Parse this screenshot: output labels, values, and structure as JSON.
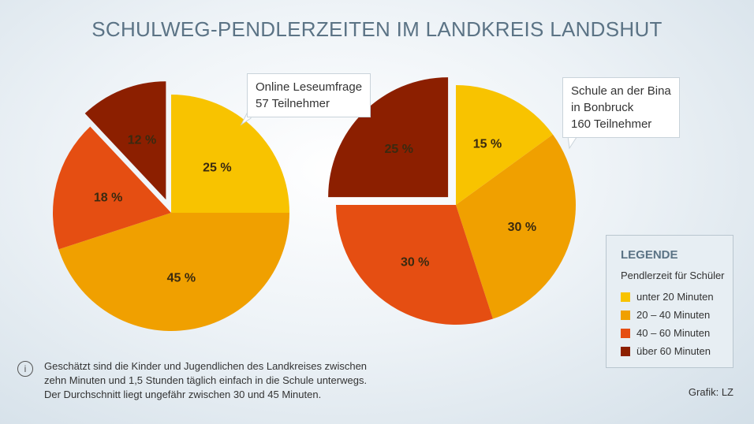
{
  "title": "SCHULWEG-PENDLERZEITEN IM LANDKREIS LANDSHUT",
  "chart_data": [
    {
      "type": "pie",
      "annotation_lines": [
        "Online Leseumfrage",
        "57 Teilnehmer"
      ],
      "categories": [
        "unter 20 Minuten",
        "20 – 40 Minuten",
        "40 – 60 Minuten",
        "über 60 Minuten"
      ],
      "values": [
        25,
        45,
        18,
        12
      ],
      "labels": [
        "25 %",
        "45 %",
        "18 %",
        "12 %"
      ],
      "exploded": "über 60 Minuten"
    },
    {
      "type": "pie",
      "annotation_lines": [
        "Schule an der Bina",
        "in Bonbruck",
        "160 Teilnehmer"
      ],
      "categories": [
        "unter 20 Minuten",
        "20 – 40 Minuten",
        "40 – 60 Minuten",
        "über 60 Minuten"
      ],
      "values": [
        15,
        30,
        30,
        25
      ],
      "labels": [
        "15 %",
        "30 %",
        "30 %",
        "25 %"
      ],
      "exploded": "über 60 Minuten"
    }
  ],
  "legend": {
    "title": "LEGENDE",
    "subtitle": "Pendlerzeit für Schüler",
    "items": [
      {
        "label": "unter 20 Minuten",
        "color": "#f8c300"
      },
      {
        "label": "20 – 40 Minuten",
        "color": "#f0a000"
      },
      {
        "label": "40 – 60 Minuten",
        "color": "#e54e12"
      },
      {
        "label": "über 60 Minuten",
        "color": "#8c1f00"
      }
    ]
  },
  "note": {
    "lines": [
      "Geschätzt sind die Kinder und Jugendlichen des Landkreises zwischen",
      "zehn Minuten und 1,5 Stunden täglich einfach in die Schule unterwegs.",
      "Der Durchschnitt liegt ungefähr zwischen 30 und 45 Minuten."
    ],
    "icon": "info-icon",
    "icon_glyph": "i"
  },
  "credit": "Grafik: LZ"
}
